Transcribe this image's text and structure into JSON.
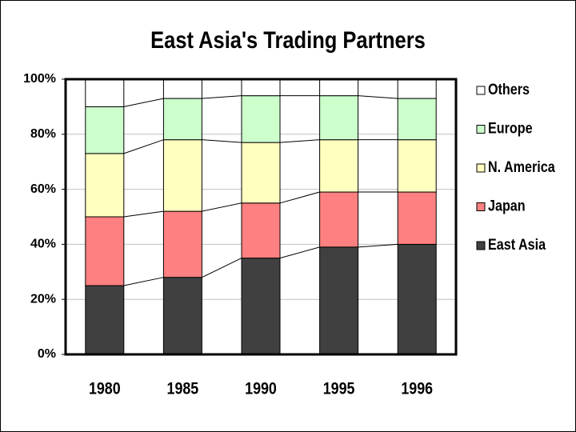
{
  "chart_data": {
    "type": "stacked_bar",
    "title": "East Asia's Trading Partners",
    "categories": [
      "1980",
      "1985",
      "1990",
      "1995",
      "1996"
    ],
    "series": [
      {
        "name": "East Asia",
        "color": "#404040",
        "values": [
          25,
          28,
          35,
          39,
          40
        ]
      },
      {
        "name": "Japan",
        "color": "#ff8080",
        "values": [
          25,
          24,
          20,
          20,
          19
        ]
      },
      {
        "name": "N. America",
        "color": "#ffffc0",
        "values": [
          23,
          26,
          22,
          19,
          19
        ]
      },
      {
        "name": "Europe",
        "color": "#ccffcc",
        "values": [
          17,
          15,
          17,
          16,
          15
        ]
      },
      {
        "name": "Others",
        "color": "#ffffff",
        "values": [
          10,
          7,
          6,
          6,
          7
        ]
      }
    ],
    "ylim": [
      0,
      100
    ],
    "yticks": [
      {
        "value": 0,
        "label": "0%"
      },
      {
        "value": 20,
        "label": "20%"
      },
      {
        "value": 40,
        "label": "40%"
      },
      {
        "value": 60,
        "label": "60%"
      },
      {
        "value": 80,
        "label": "80%"
      },
      {
        "value": 100,
        "label": "100%"
      }
    ],
    "grid": true,
    "legend": "right"
  }
}
